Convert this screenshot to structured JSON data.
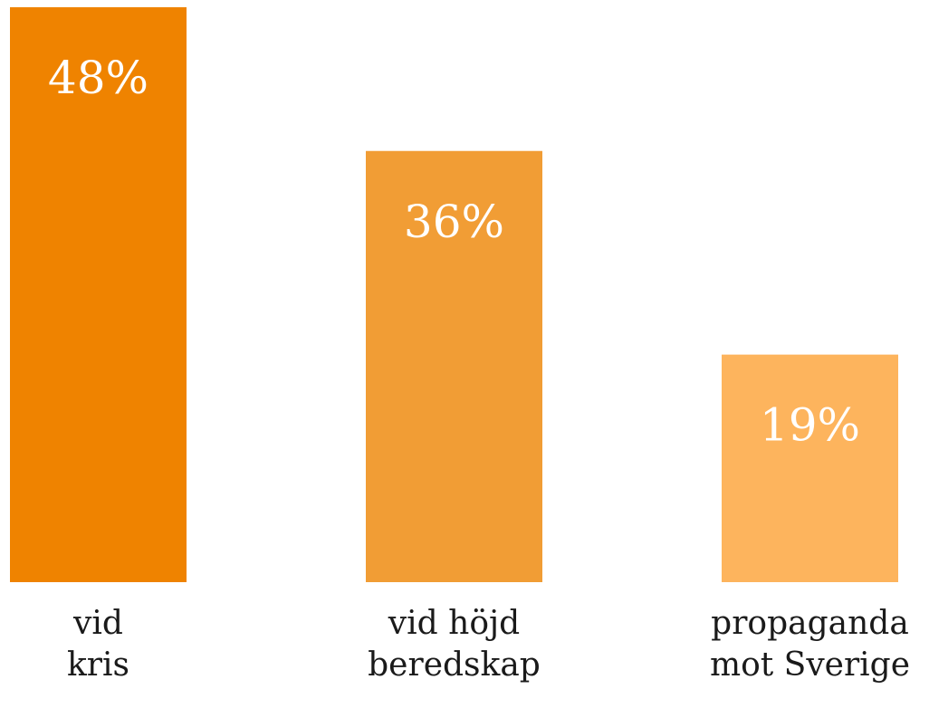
{
  "chart_data": {
    "type": "bar",
    "categories": [
      [
        "vid",
        "kris"
      ],
      [
        "vid höjd",
        "beredskap"
      ],
      [
        "propaganda",
        "mot Sverige"
      ]
    ],
    "values": [
      48,
      36,
      19
    ],
    "value_labels": [
      "48%",
      "36%",
      "19%"
    ],
    "colors": [
      "#ef8300",
      "#f19d35",
      "#fdb45d"
    ],
    "ylim": [
      0,
      48
    ]
  }
}
